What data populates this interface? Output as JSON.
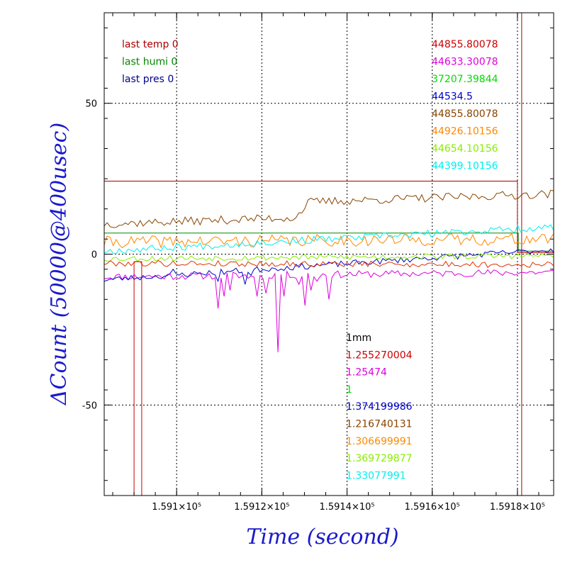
{
  "chart_data": {
    "type": "line",
    "xlabel": "Time (second)",
    "ylabel": "ΔCount (50000@400usec)",
    "xlim": [
      159083.0,
      159188.5
    ],
    "ylim": [
      -80,
      80
    ],
    "x_ticks": [
      {
        "value": 159100,
        "label": "1.591×10⁵"
      },
      {
        "value": 159120,
        "label": "1.5912×10⁵"
      },
      {
        "value": 159140,
        "label": "1.5914×10⁵"
      },
      {
        "value": 159160,
        "label": "1.5916×10⁵"
      },
      {
        "value": 159180,
        "label": "1.5918×10⁵"
      }
    ],
    "y_ticks": [
      {
        "value": 50,
        "label": "50"
      },
      {
        "value": 0,
        "label": "0"
      },
      {
        "value": -50,
        "label": "-50"
      }
    ],
    "grid": true,
    "legend_top_left": [
      {
        "text": "last temp 0",
        "color": "#aa0000"
      },
      {
        "text": "last humi 0",
        "color": "#008800"
      },
      {
        "text": "last pres 0",
        "color": "#000088"
      }
    ],
    "legend_top_right": [
      {
        "text": "44855.80078",
        "color": "#cc0000"
      },
      {
        "text": "44633.30078",
        "color": "#dd00dd"
      },
      {
        "text": "37207.39844",
        "color": "#00dd00"
      },
      {
        "text": "44534.5",
        "color": "#0000cc"
      },
      {
        "text": "44855.80078",
        "color": "#884400"
      },
      {
        "text": "44926.10156",
        "color": "#ff8800"
      },
      {
        "text": "44654.10156",
        "color": "#88ee00"
      },
      {
        "text": "44399.10156",
        "color": "#00eeee"
      }
    ],
    "legend_bottom": [
      {
        "text": "1mm",
        "color": "#000000"
      },
      {
        "text": "1.255270004",
        "color": "#cc0000"
      },
      {
        "text": "1.25474",
        "color": "#dd00dd"
      },
      {
        "text": "1",
        "color": "#00dd00"
      },
      {
        "text": "1.374199986",
        "color": "#0000cc"
      },
      {
        "text": "1.216740131",
        "color": "#884400"
      },
      {
        "text": "1.306699991",
        "color": "#ff8800"
      },
      {
        "text": "1.369729877",
        "color": "#88ee00"
      },
      {
        "text": "1.33077991",
        "color": "#00eeee"
      }
    ],
    "series": [
      {
        "color": "#aa0000",
        "style": "step",
        "points": [
          [
            159083.0,
            24.2
          ],
          [
            159180.0,
            24.2
          ],
          [
            159180.0,
            0.5
          ],
          [
            159188.5,
            0.5
          ]
        ]
      },
      {
        "color": "#008800",
        "style": "step",
        "points": [
          [
            159083.0,
            7.0
          ],
          [
            159180.2,
            7.0
          ],
          [
            159180.2,
            1.0
          ],
          [
            159188.5,
            1.0
          ]
        ]
      },
      {
        "color": "#cc0000",
        "style": "step",
        "points": [
          [
            159090.0,
            -80
          ],
          [
            159090.0,
            -2.5
          ],
          [
            159091.8,
            -2.5
          ],
          [
            159091.8,
            -80
          ]
        ]
      },
      {
        "color": "#aa0000",
        "style": "step",
        "points": [
          [
            159181.0,
            -80
          ],
          [
            159181.0,
            80
          ]
        ]
      },
      {
        "color": "#dd00dd",
        "style": "noisy",
        "start": -7.5,
        "end": -6.0,
        "spread": 1.2,
        "seed": 11,
        "spikes": [
          [
            159109.5,
            -18
          ],
          [
            159111.2,
            -14
          ],
          [
            159112.5,
            -12
          ],
          [
            159117.0,
            -8
          ],
          [
            159119.2,
            -14
          ],
          [
            159120.8,
            -13
          ],
          [
            159123.5,
            -32.5
          ],
          [
            159125.0,
            -14
          ],
          [
            159128.5,
            -10
          ],
          [
            159129.8,
            -17
          ],
          [
            159131.2,
            -12
          ],
          [
            159132.8,
            -9
          ],
          [
            159136.0,
            -15
          ]
        ]
      },
      {
        "color": "#0000cc",
        "style": "noisy",
        "start": -8.5,
        "end": 1.5,
        "spread": 1.0,
        "seed": 23,
        "spikes": [
          [
            159099.5,
            -5
          ],
          [
            159110.0,
            -9
          ],
          [
            159116.0,
            -10
          ],
          [
            159117.5,
            -7
          ]
        ]
      },
      {
        "color": "#884400",
        "style": "noisy",
        "start": 10.0,
        "end": 20.0,
        "spread": 1.4,
        "seed": 37,
        "steps": [
          [
            159128.0,
            5.0
          ]
        ]
      },
      {
        "color": "#ff8800",
        "style": "noisy",
        "start": 4.0,
        "end": 5.0,
        "spread": 2.0,
        "seed": 41
      },
      {
        "color": "#88ee00",
        "style": "noisy",
        "start": -1.5,
        "end": -0.5,
        "spread": 1.0,
        "seed": 53
      },
      {
        "color": "#00eeee",
        "style": "noisy",
        "start": 1.0,
        "end": 9.0,
        "spread": 1.2,
        "seed": 67
      },
      {
        "color": "#dd3300",
        "style": "noisy",
        "start": -3.0,
        "end": -3.5,
        "spread": 1.0,
        "seed": 79
      }
    ]
  }
}
